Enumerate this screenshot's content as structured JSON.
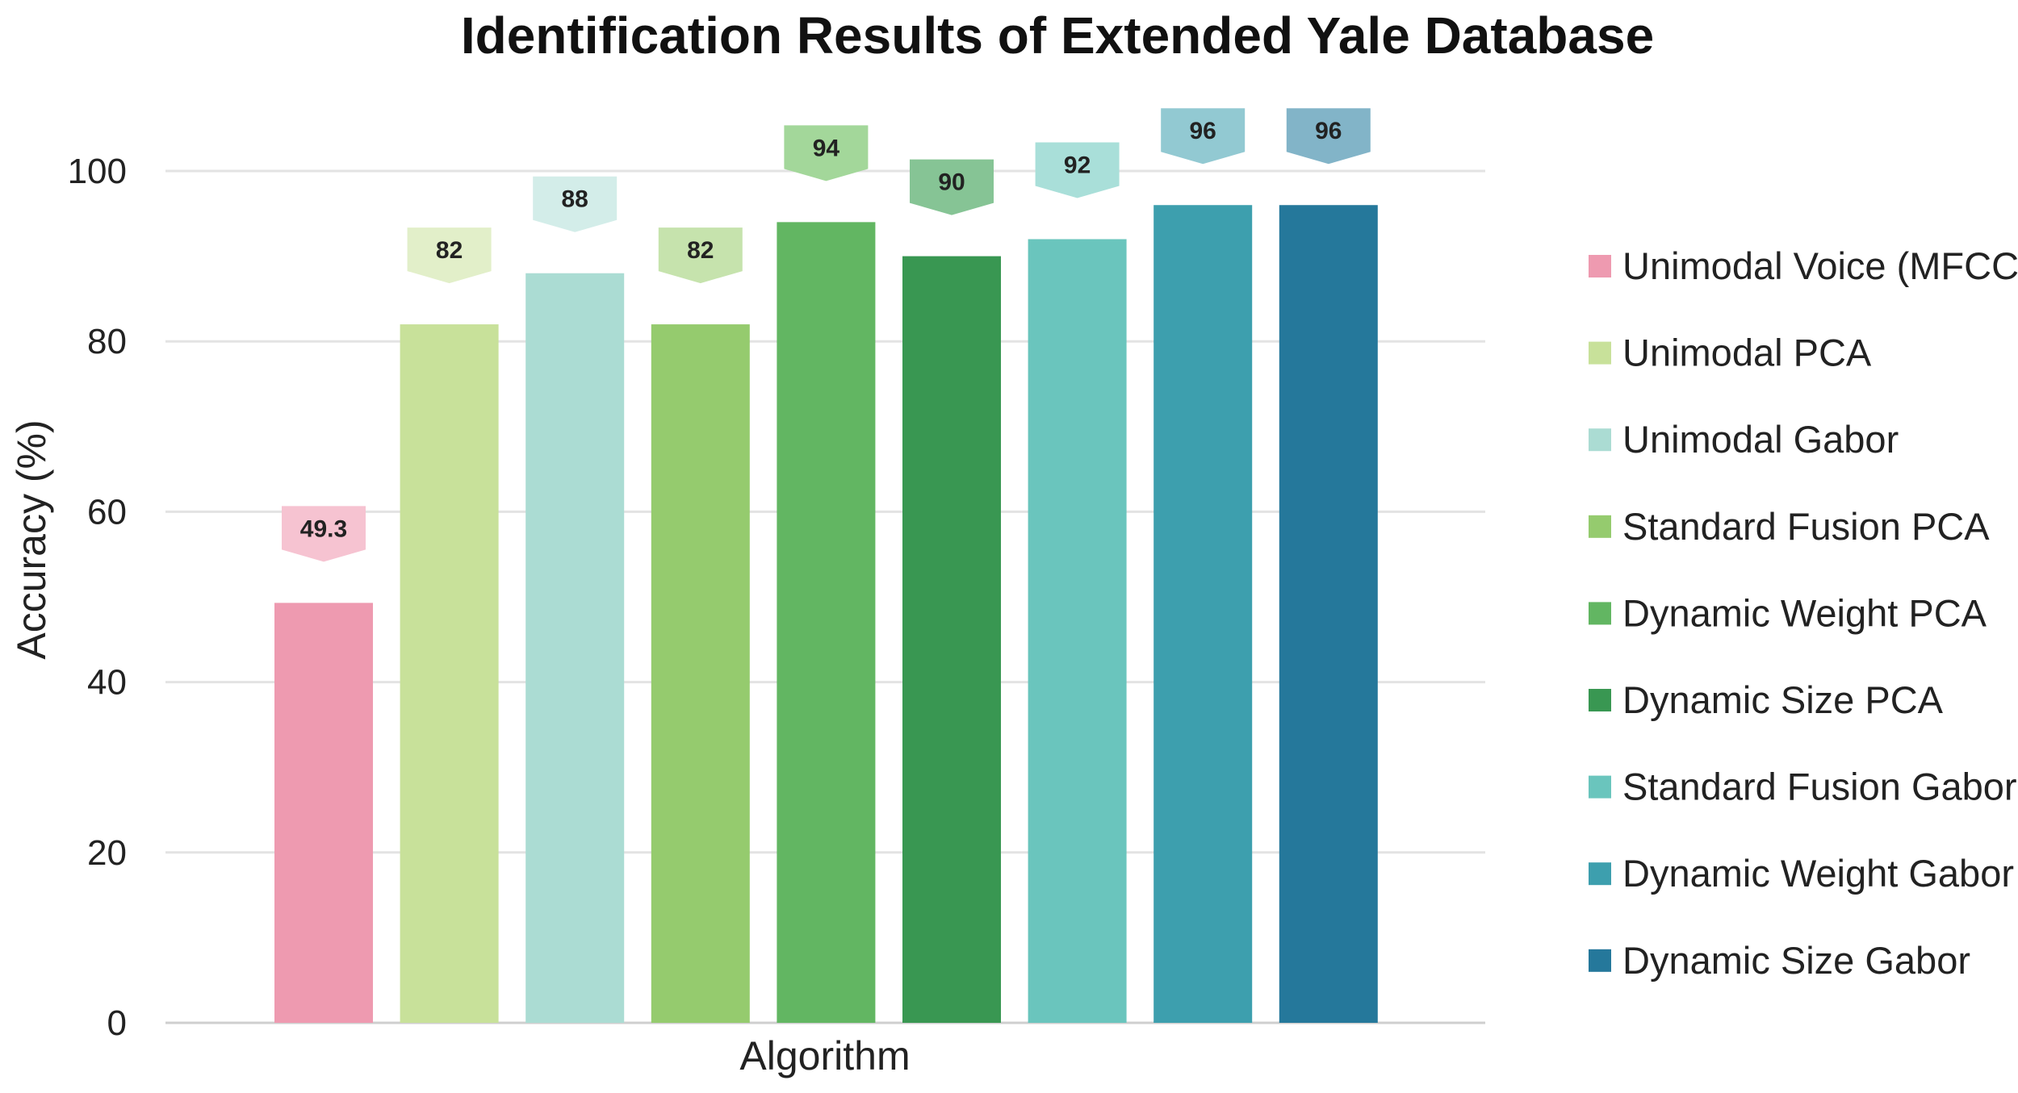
{
  "chart_data": {
    "type": "bar",
    "title": "Identification Results of Extended Yale Database",
    "xlabel": "Algorithm",
    "ylabel": "Accuracy (%)",
    "ylim": [
      0,
      100
    ],
    "yticks": [
      0,
      20,
      40,
      60,
      80,
      100
    ],
    "grid": true,
    "legend_position": "right",
    "series": [
      {
        "name": "Unimodal Voice (MFCC)",
        "value": 49.3,
        "label": "49.3",
        "color": "#ee9ab0",
        "label_bg": "#f6c3d1"
      },
      {
        "name": "Unimodal PCA",
        "value": 82,
        "label": "82",
        "color": "#c8e19a",
        "label_bg": "#e2efc9"
      },
      {
        "name": "Unimodal Gabor",
        "value": 88,
        "label": "88",
        "color": "#abdcd3",
        "label_bg": "#d3ede9"
      },
      {
        "name": "Standard Fusion PCA",
        "value": 82,
        "label": "82",
        "color": "#95cb6e",
        "label_bg": "#c6e3ad"
      },
      {
        "name": "Dynamic Weight PCA",
        "value": 94,
        "label": "94",
        "color": "#62b662",
        "label_bg": "#a3d79a"
      },
      {
        "name": "Dynamic Size PCA",
        "value": 90,
        "label": "90",
        "color": "#399752",
        "label_bg": "#86c495"
      },
      {
        "name": "Standard Fusion Gabor",
        "value": 92,
        "label": "92",
        "color": "#6ac5bd",
        "label_bg": "#a9dfd9"
      },
      {
        "name": "Dynamic Weight Gabor",
        "value": 96,
        "label": "96",
        "color": "#3d9fae",
        "label_bg": "#92c9d2"
      },
      {
        "name": "Dynamic Size Gabor",
        "value": 96,
        "label": "96",
        "color": "#25789b",
        "label_bg": "#82b4c8"
      }
    ]
  }
}
